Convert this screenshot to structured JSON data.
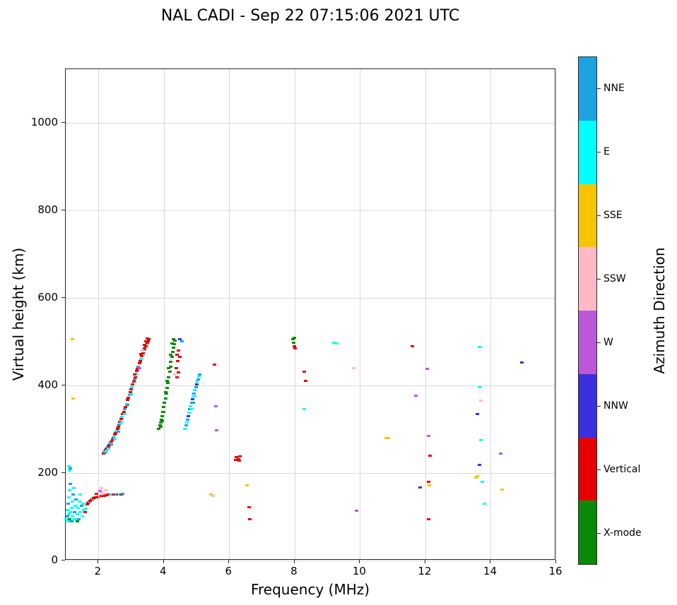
{
  "title": "NAL CADI - Sep 22 07:15:06 2021 UTC",
  "axes": {
    "xlabel": "Frequency (MHz)",
    "ylabel": "Virtual height (km)",
    "xlim": [
      1,
      16
    ],
    "ylim": [
      0,
      1122
    ],
    "xticks": [
      2,
      4,
      6,
      8,
      10,
      12,
      14,
      16
    ],
    "yticks": [
      0,
      200,
      400,
      600,
      800,
      1000
    ],
    "grid": true
  },
  "colorbar": {
    "label": "Azimuth Direction",
    "categories": [
      {
        "label": "NNE",
        "color": "#1CA2E2"
      },
      {
        "label": "E",
        "color": "#00FFFF"
      },
      {
        "label": "SSE",
        "color": "#F5C500"
      },
      {
        "label": "SSW",
        "color": "#FFB9C6"
      },
      {
        "label": "W",
        "color": "#BB58D8"
      },
      {
        "label": "NNW",
        "color": "#3930E0"
      },
      {
        "label": "Vertical",
        "color": "#E80000"
      },
      {
        "label": "X-mode",
        "color": "#088A08"
      }
    ]
  },
  "chart_data": {
    "type": "scatter",
    "x_units": "MHz",
    "y_units": "km",
    "legend_title": "Azimuth Direction",
    "points": [
      [
        2.15,
        245,
        "Vertical"
      ],
      [
        2.18,
        248,
        "Vertical"
      ],
      [
        2.2,
        250,
        "E"
      ],
      [
        2.22,
        252,
        "Vertical"
      ],
      [
        2.25,
        255,
        "Vertical"
      ],
      [
        2.28,
        258,
        "NNE"
      ],
      [
        2.3,
        261,
        "Vertical"
      ],
      [
        2.33,
        264,
        "Vertical"
      ],
      [
        2.36,
        268,
        "E"
      ],
      [
        2.4,
        272,
        "Vertical"
      ],
      [
        2.43,
        276,
        "Vertical"
      ],
      [
        2.46,
        281,
        "NNE"
      ],
      [
        2.5,
        287,
        "Vertical"
      ],
      [
        2.52,
        291,
        "Vertical"
      ],
      [
        2.55,
        296,
        "E"
      ],
      [
        2.58,
        301,
        "Vertical"
      ],
      [
        2.6,
        305,
        "Vertical"
      ],
      [
        2.63,
        311,
        "NNE"
      ],
      [
        2.66,
        316,
        "Vertical"
      ],
      [
        2.7,
        323,
        "Vertical"
      ],
      [
        2.72,
        328,
        "E"
      ],
      [
        2.75,
        334,
        "Vertical"
      ],
      [
        2.78,
        340,
        "Vertical"
      ],
      [
        2.8,
        345,
        "NNE"
      ],
      [
        2.83,
        351,
        "Vertical"
      ],
      [
        2.86,
        357,
        "E"
      ],
      [
        2.9,
        366,
        "Vertical"
      ],
      [
        2.92,
        371,
        "Vertical"
      ],
      [
        2.95,
        378,
        "NNE"
      ],
      [
        2.98,
        384,
        "Vertical"
      ],
      [
        3.0,
        391,
        "Vertical"
      ],
      [
        3.02,
        396,
        "E"
      ],
      [
        3.05,
        402,
        "Vertical"
      ],
      [
        3.08,
        409,
        "Vertical"
      ],
      [
        3.1,
        414,
        "NNE"
      ],
      [
        3.12,
        419,
        "Vertical"
      ],
      [
        3.15,
        426,
        "E"
      ],
      [
        3.18,
        433,
        "Vertical"
      ],
      [
        3.2,
        438,
        "Vertical"
      ],
      [
        3.22,
        443,
        "NNE"
      ],
      [
        3.25,
        450,
        "Vertical"
      ],
      [
        3.28,
        456,
        "Vertical"
      ],
      [
        3.3,
        461,
        "E"
      ],
      [
        3.33,
        467,
        "Vertical"
      ],
      [
        3.36,
        473,
        "Vertical"
      ],
      [
        3.4,
        481,
        "NNE"
      ],
      [
        3.42,
        485,
        "Vertical"
      ],
      [
        3.45,
        490,
        "Vertical"
      ],
      [
        3.48,
        494,
        "E"
      ],
      [
        3.5,
        498,
        "Vertical"
      ],
      [
        3.52,
        501,
        "Vertical"
      ],
      [
        3.55,
        505,
        "Vertical"
      ],
      [
        3.45,
        500,
        "Vertical"
      ],
      [
        3.5,
        507,
        "Vertical"
      ],
      [
        3.4,
        492,
        "Vertical"
      ],
      [
        3.35,
        480,
        "SSW"
      ],
      [
        3.3,
        472,
        "Vertical"
      ],
      [
        3.25,
        440,
        "W"
      ],
      [
        3.1,
        425,
        "Vertical"
      ],
      [
        3.0,
        380,
        "E"
      ],
      [
        2.9,
        355,
        "NNE"
      ],
      [
        2.8,
        335,
        "E"
      ],
      [
        2.7,
        315,
        "E"
      ],
      [
        2.6,
        295,
        "NNE"
      ],
      [
        2.5,
        278,
        "E"
      ],
      [
        2.4,
        265,
        "NNE"
      ],
      [
        2.3,
        255,
        "E"
      ],
      [
        2.2,
        246,
        "NNE"
      ],
      [
        2.25,
        250,
        "E"
      ],
      [
        3.85,
        300,
        "X-mode"
      ],
      [
        3.88,
        308,
        "X-mode"
      ],
      [
        3.9,
        315,
        "X-mode"
      ],
      [
        3.92,
        322,
        "X-mode"
      ],
      [
        3.95,
        330,
        "X-mode"
      ],
      [
        3.98,
        340,
        "X-mode"
      ],
      [
        4.0,
        350,
        "X-mode"
      ],
      [
        4.02,
        360,
        "X-mode"
      ],
      [
        4.05,
        370,
        "X-mode"
      ],
      [
        4.08,
        382,
        "X-mode"
      ],
      [
        4.1,
        394,
        "X-mode"
      ],
      [
        4.12,
        406,
        "X-mode"
      ],
      [
        4.15,
        418,
        "X-mode"
      ],
      [
        4.18,
        431,
        "X-mode"
      ],
      [
        4.2,
        443,
        "X-mode"
      ],
      [
        4.22,
        454,
        "X-mode"
      ],
      [
        4.25,
        465,
        "X-mode"
      ],
      [
        4.28,
        476,
        "X-mode"
      ],
      [
        4.3,
        486,
        "X-mode"
      ],
      [
        4.32,
        494,
        "X-mode"
      ],
      [
        4.35,
        502,
        "X-mode"
      ],
      [
        4.3,
        505,
        "X-mode"
      ],
      [
        4.25,
        495,
        "X-mode"
      ],
      [
        4.2,
        470,
        "X-mode"
      ],
      [
        4.15,
        440,
        "X-mode"
      ],
      [
        4.1,
        410,
        "X-mode"
      ],
      [
        4.05,
        385,
        "X-mode"
      ],
      [
        4.0,
        340,
        "X-mode"
      ],
      [
        3.95,
        318,
        "X-mode"
      ],
      [
        3.9,
        305,
        "X-mode"
      ],
      [
        4.4,
        470,
        "Vertical"
      ],
      [
        4.45,
        480,
        "Vertical"
      ],
      [
        4.42,
        455,
        "Vertical"
      ],
      [
        4.38,
        440,
        "Vertical"
      ],
      [
        4.45,
        430,
        "Vertical"
      ],
      [
        4.5,
        465,
        "Vertical"
      ],
      [
        4.35,
        425,
        "SSW"
      ],
      [
        4.4,
        418,
        "Vertical"
      ],
      [
        4.5,
        505,
        "NNW"
      ],
      [
        4.55,
        500,
        "NNE"
      ],
      [
        4.65,
        300,
        "E"
      ],
      [
        4.68,
        308,
        "NNE"
      ],
      [
        4.7,
        315,
        "E"
      ],
      [
        4.72,
        322,
        "NNE"
      ],
      [
        4.75,
        330,
        "NNW"
      ],
      [
        4.78,
        338,
        "E"
      ],
      [
        4.8,
        345,
        "NNE"
      ],
      [
        4.82,
        352,
        "E"
      ],
      [
        4.85,
        360,
        "NNE"
      ],
      [
        4.88,
        368,
        "NNW"
      ],
      [
        4.9,
        375,
        "E"
      ],
      [
        4.92,
        382,
        "NNE"
      ],
      [
        4.95,
        390,
        "E"
      ],
      [
        4.98,
        396,
        "NNE"
      ],
      [
        5.0,
        402,
        "NNW"
      ],
      [
        5.02,
        408,
        "E"
      ],
      [
        5.05,
        414,
        "NNE"
      ],
      [
        5.08,
        420,
        "E"
      ],
      [
        5.1,
        425,
        "NNE"
      ],
      [
        4.85,
        345,
        "E"
      ],
      [
        4.9,
        360,
        "NNE"
      ],
      [
        4.95,
        375,
        "E"
      ],
      [
        1.65,
        128,
        "Vertical"
      ],
      [
        1.68,
        131,
        "Vertical"
      ],
      [
        1.7,
        133,
        "Vertical"
      ],
      [
        1.72,
        135,
        "E"
      ],
      [
        1.75,
        137,
        "Vertical"
      ],
      [
        1.78,
        139,
        "Vertical"
      ],
      [
        1.8,
        140,
        "Vertical"
      ],
      [
        1.83,
        141,
        "E"
      ],
      [
        1.85,
        142,
        "Vertical"
      ],
      [
        1.88,
        143,
        "Vertical"
      ],
      [
        1.9,
        144,
        "Vertical"
      ],
      [
        1.95,
        145,
        "Vertical"
      ],
      [
        2.0,
        146,
        "Vertical"
      ],
      [
        2.05,
        147,
        "SSW"
      ],
      [
        2.1,
        148,
        "Vertical"
      ],
      [
        2.12,
        155,
        "SSW"
      ],
      [
        2.15,
        150,
        "SSW"
      ],
      [
        2.18,
        148,
        "Vertical"
      ],
      [
        2.2,
        152,
        "SSW"
      ],
      [
        2.22,
        160,
        "SSW"
      ],
      [
        2.25,
        149,
        "Vertical"
      ],
      [
        2.3,
        150,
        "Vertical"
      ],
      [
        2.35,
        150,
        "Vertical"
      ],
      [
        2.4,
        150,
        "E"
      ],
      [
        2.45,
        150,
        "Vertical"
      ],
      [
        2.5,
        151,
        "Vertical"
      ],
      [
        2.55,
        151,
        "NNE"
      ],
      [
        2.6,
        151,
        "Vertical"
      ],
      [
        2.65,
        151,
        "E"
      ],
      [
        2.7,
        151,
        "Vertical"
      ],
      [
        2.75,
        152,
        "NNE"
      ],
      [
        2.1,
        165,
        "SSW"
      ],
      [
        2.05,
        158,
        "W"
      ],
      [
        1.95,
        152,
        "Vertical"
      ],
      [
        1.55,
        115,
        "E"
      ],
      [
        1.6,
        110,
        "Vertical"
      ],
      [
        1.62,
        118,
        "E"
      ],
      [
        1.02,
        95,
        "E"
      ],
      [
        1.05,
        100,
        "NNE"
      ],
      [
        1.05,
        115,
        "E"
      ],
      [
        1.08,
        90,
        "E"
      ],
      [
        1.08,
        130,
        "NNE"
      ],
      [
        1.1,
        105,
        "E"
      ],
      [
        1.1,
        145,
        "E"
      ],
      [
        1.12,
        95,
        "X-mode"
      ],
      [
        1.12,
        160,
        "E"
      ],
      [
        1.15,
        110,
        "E"
      ],
      [
        1.15,
        175,
        "NNE"
      ],
      [
        1.18,
        120,
        "E"
      ],
      [
        1.18,
        90,
        "NNE"
      ],
      [
        1.2,
        135,
        "E"
      ],
      [
        1.2,
        100,
        "E"
      ],
      [
        1.22,
        150,
        "NNE"
      ],
      [
        1.25,
        95,
        "E"
      ],
      [
        1.25,
        165,
        "E"
      ],
      [
        1.28,
        110,
        "NNE"
      ],
      [
        1.3,
        125,
        "E"
      ],
      [
        1.3,
        95,
        "E"
      ],
      [
        1.32,
        140,
        "NNE"
      ],
      [
        1.35,
        105,
        "E"
      ],
      [
        1.38,
        120,
        "E"
      ],
      [
        1.4,
        95,
        "NNE"
      ],
      [
        1.42,
        135,
        "E"
      ],
      [
        1.45,
        110,
        "E"
      ],
      [
        1.48,
        125,
        "NNE"
      ],
      [
        1.5,
        100,
        "E"
      ],
      [
        1.52,
        130,
        "E"
      ],
      [
        1.35,
        90,
        "X-mode"
      ],
      [
        1.45,
        150,
        "E"
      ],
      [
        1.1,
        215,
        "E"
      ],
      [
        1.12,
        205,
        "E"
      ],
      [
        1.15,
        210,
        "NNE"
      ],
      [
        1.2,
        505,
        "SSE"
      ],
      [
        1.22,
        370,
        "SSE"
      ],
      [
        5.55,
        447,
        "Vertical"
      ],
      [
        5.6,
        352,
        "W"
      ],
      [
        5.62,
        297,
        "W"
      ],
      [
        5.45,
        150,
        "SSE"
      ],
      [
        5.5,
        147,
        "SSW"
      ],
      [
        6.2,
        230,
        "Vertical"
      ],
      [
        6.22,
        236,
        "Vertical"
      ],
      [
        6.28,
        232,
        "Vertical"
      ],
      [
        6.33,
        237,
        "Vertical"
      ],
      [
        6.3,
        228,
        "Vertical"
      ],
      [
        6.55,
        172,
        "SSE"
      ],
      [
        6.6,
        122,
        "Vertical"
      ],
      [
        6.62,
        95,
        "Vertical"
      ],
      [
        7.95,
        505,
        "X-mode"
      ],
      [
        7.98,
        498,
        "X-mode"
      ],
      [
        8.0,
        490,
        "Vertical"
      ],
      [
        8.02,
        485,
        "Vertical"
      ],
      [
        8.0,
        508,
        "X-mode"
      ],
      [
        8.3,
        432,
        "Vertical"
      ],
      [
        8.33,
        410,
        "Vertical"
      ],
      [
        8.3,
        345,
        "E"
      ],
      [
        9.2,
        497,
        "E"
      ],
      [
        9.28,
        496,
        "E"
      ],
      [
        9.8,
        440,
        "SSW"
      ],
      [
        9.9,
        113,
        "W"
      ],
      [
        10.8,
        280,
        "SSE"
      ],
      [
        10.87,
        280,
        "SSE"
      ],
      [
        11.6,
        489,
        "Vertical"
      ],
      [
        11.7,
        377,
        "W"
      ],
      [
        11.85,
        167,
        "NNW"
      ],
      [
        12.05,
        438,
        "W"
      ],
      [
        12.1,
        285,
        "W"
      ],
      [
        12.15,
        240,
        "Vertical"
      ],
      [
        12.1,
        180,
        "Vertical"
      ],
      [
        12.13,
        172,
        "SSE"
      ],
      [
        12.1,
        95,
        "Vertical"
      ],
      [
        13.55,
        190,
        "SSE"
      ],
      [
        13.6,
        193,
        "SSE"
      ],
      [
        13.6,
        335,
        "NNW"
      ],
      [
        13.65,
        395,
        "E"
      ],
      [
        13.65,
        487,
        "E"
      ],
      [
        13.7,
        365,
        "SSW"
      ],
      [
        13.7,
        275,
        "E"
      ],
      [
        13.65,
        218,
        "NNW"
      ],
      [
        13.75,
        180,
        "E"
      ],
      [
        13.8,
        130,
        "E"
      ],
      [
        14.35,
        162,
        "SSE"
      ],
      [
        14.3,
        245,
        "W"
      ],
      [
        14.95,
        452,
        "NNW"
      ]
    ]
  }
}
